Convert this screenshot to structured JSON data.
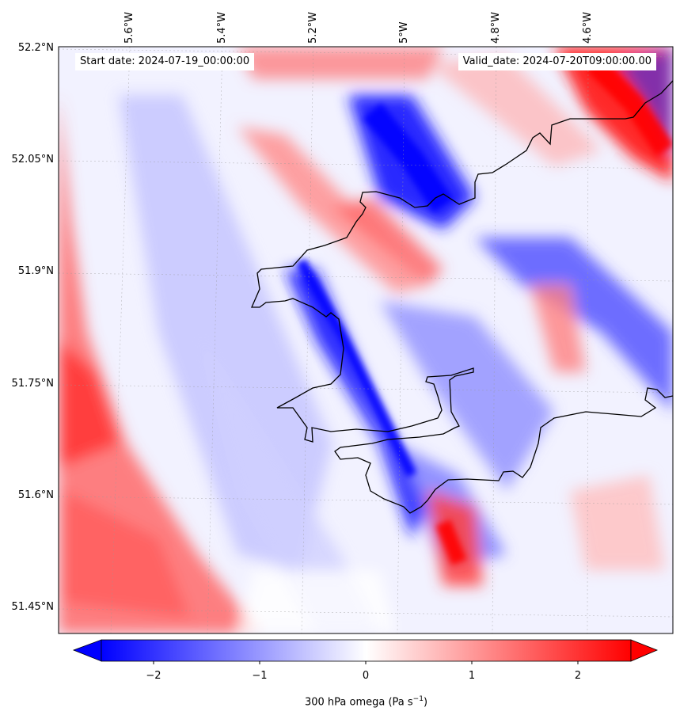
{
  "map": {
    "start_label": "Start date: 2024-07-19_00:00:00",
    "valid_label": "Valid_date: 2024-07-20T09:00:00.00",
    "lat_ticks": [
      "52.2°N",
      "52.05°N",
      "51.9°N",
      "51.75°N",
      "51.6°N",
      "51.45°N"
    ],
    "lon_ticks": [
      "5.6°W",
      "5.4°W",
      "5.2°W",
      "5°W",
      "4.8°W",
      "4.6°W"
    ],
    "colorbar": {
      "label": "300 hPa omega (Pa s",
      "label_sup": "−1",
      "label_end": ")",
      "tick_values": [
        "−2",
        "−1",
        "0",
        "1",
        "2"
      ],
      "range": [
        -2.5,
        2.5
      ],
      "cmap": "bwr",
      "extend": "both"
    },
    "colors": {
      "neg": "#0000ff",
      "zero": "#ffffff",
      "pos": "#ff0000",
      "coast": "#000000"
    },
    "field_pattern": "diagonal alternating positive/negative omega bands oriented NW–SE",
    "coastline_region": "South-west Wales (Pembrokeshire / Milford Haven)"
  }
}
